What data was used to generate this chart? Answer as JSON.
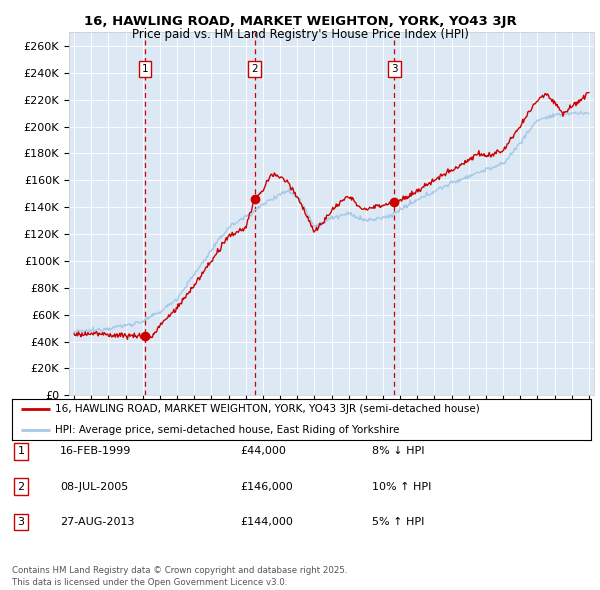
{
  "title1": "16, HAWLING ROAD, MARKET WEIGHTON, YORK, YO43 3JR",
  "title2": "Price paid vs. HM Land Registry's House Price Index (HPI)",
  "ylabel_ticks": [
    "£0",
    "£20K",
    "£40K",
    "£60K",
    "£80K",
    "£100K",
    "£120K",
    "£140K",
    "£160K",
    "£180K",
    "£200K",
    "£220K",
    "£240K",
    "£260K"
  ],
  "ytick_values": [
    0,
    20000,
    40000,
    60000,
    80000,
    100000,
    120000,
    140000,
    160000,
    180000,
    200000,
    220000,
    240000,
    260000
  ],
  "ylim": [
    0,
    270000
  ],
  "xlim_start": 1994.7,
  "xlim_end": 2025.3,
  "background_color": "#dce9f5",
  "fig_bg_color": "#ffffff",
  "hpi_color": "#a8c8e8",
  "price_color": "#cc0000",
  "vline_color": "#cc0000",
  "sale_dates": [
    1999.12,
    2005.52,
    2013.66
  ],
  "sale_prices": [
    44000,
    146000,
    144000
  ],
  "sale_labels": [
    "1",
    "2",
    "3"
  ],
  "legend_line1": "16, HAWLING ROAD, MARKET WEIGHTON, YORK, YO43 3JR (semi-detached house)",
  "legend_line2": "HPI: Average price, semi-detached house, East Riding of Yorkshire",
  "table_rows": [
    [
      "1",
      "16-FEB-1999",
      "£44,000",
      "8% ↓ HPI"
    ],
    [
      "2",
      "08-JUL-2005",
      "£146,000",
      "10% ↑ HPI"
    ],
    [
      "3",
      "27-AUG-2013",
      "£144,000",
      "5% ↑ HPI"
    ]
  ],
  "footer": "Contains HM Land Registry data © Crown copyright and database right 2025.\nThis data is licensed under the Open Government Licence v3.0."
}
